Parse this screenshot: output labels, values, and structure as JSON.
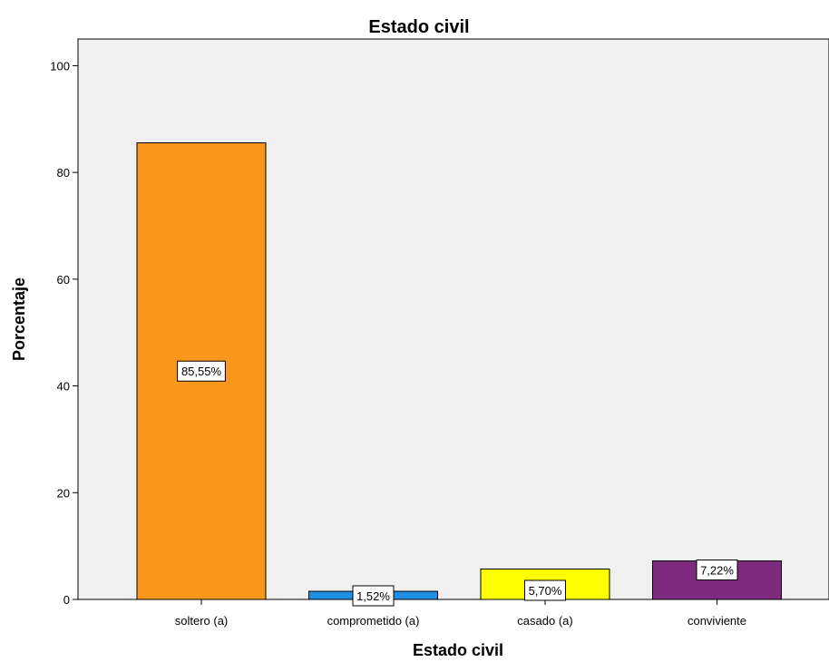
{
  "chart_data": {
    "type": "bar",
    "title": "Estado civil",
    "xlabel": "Estado civil",
    "ylabel": "Porcentaje",
    "ylim": [
      0,
      105
    ],
    "yticks": [
      0,
      20,
      40,
      60,
      80,
      100
    ],
    "categories": [
      "soltero (a)",
      "comprometido (a)",
      "casado (a)",
      "conviviente"
    ],
    "values": [
      85.55,
      1.52,
      5.7,
      7.22
    ],
    "data_labels": [
      "85,55%",
      "1,52%",
      "5,70%",
      "7,22%"
    ],
    "colors": [
      "#f7971c",
      "#1e8fe3",
      "#ffff00",
      "#7e2a7e"
    ],
    "plot_background": "#f0f0f0",
    "grid": false,
    "legend": "none"
  }
}
